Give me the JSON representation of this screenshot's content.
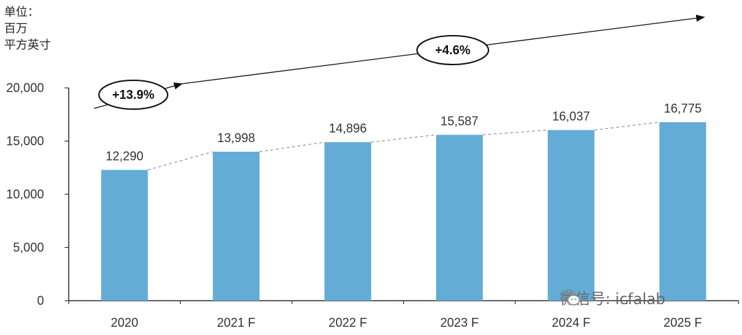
{
  "unit_label": [
    "单位：",
    "百万",
    "平方英寸"
  ],
  "watermark": "微信号: icfalab",
  "chart_data": {
    "type": "bar",
    "categories": [
      "2020",
      "2021 F",
      "2022 F",
      "2023 F",
      "2024 F",
      "2025 F"
    ],
    "values": [
      12290,
      13998,
      14896,
      15587,
      16037,
      16775
    ],
    "value_labels": [
      "12,290",
      "13,998",
      "14,896",
      "15,587",
      "16,037",
      "16,775"
    ],
    "yticks": [
      "0",
      "5,000",
      "10,000",
      "15,000",
      "20,000"
    ],
    "ytick_values": [
      0,
      5000,
      10000,
      15000,
      20000
    ],
    "ylim": [
      0,
      20000
    ],
    "bar_color": "#63acd6",
    "trend_line": "dashed",
    "annotations": [
      {
        "text": "+13.9%",
        "segment": "2020-2021"
      },
      {
        "text": "+4.6%",
        "segment": "2021-2025"
      }
    ]
  }
}
